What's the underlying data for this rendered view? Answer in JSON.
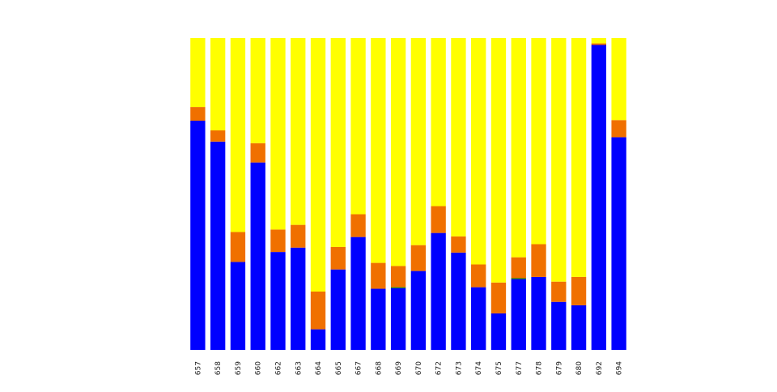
{
  "chart_data": {
    "type": "bar",
    "stacked": true,
    "normalized": true,
    "title": "",
    "xlabel": "",
    "ylabel": "",
    "ylim": [
      0,
      1
    ],
    "grid": false,
    "legend": "none",
    "categories": [
      "657",
      "658",
      "659",
      "660",
      "662",
      "663",
      "664",
      "665",
      "667",
      "668",
      "669",
      "670",
      "672",
      "673",
      "674",
      "675",
      "677",
      "678",
      "679",
      "680",
      "692",
      "694"
    ],
    "series": [
      {
        "color": "#0000ff",
        "values": [
          0.735,
          0.668,
          0.282,
          0.601,
          0.314,
          0.328,
          0.066,
          0.258,
          0.362,
          0.196,
          0.198,
          0.253,
          0.375,
          0.312,
          0.201,
          0.117,
          0.227,
          0.234,
          0.154,
          0.143,
          0.978,
          0.682
        ]
      },
      {
        "color": "#008000",
        "values": [
          0,
          0,
          0,
          0,
          0,
          0,
          0,
          0,
          0,
          0,
          0.003,
          0,
          0,
          0,
          0,
          0,
          0.003,
          0,
          0,
          0,
          0,
          0
        ]
      },
      {
        "color": "#f07000",
        "values": [
          0.044,
          0.036,
          0.096,
          0.062,
          0.072,
          0.073,
          0.121,
          0.072,
          0.073,
          0.083,
          0.068,
          0.083,
          0.086,
          0.052,
          0.073,
          0.099,
          0.067,
          0.105,
          0.065,
          0.091,
          0.005,
          0.055
        ]
      },
      {
        "color": "#ffff00",
        "values": [
          0.221,
          0.296,
          0.622,
          0.337,
          0.614,
          0.599,
          0.813,
          0.67,
          0.565,
          0.721,
          0.731,
          0.664,
          0.539,
          0.636,
          0.726,
          0.784,
          0.703,
          0.661,
          0.781,
          0.766,
          0.017,
          0.263
        ]
      }
    ]
  }
}
